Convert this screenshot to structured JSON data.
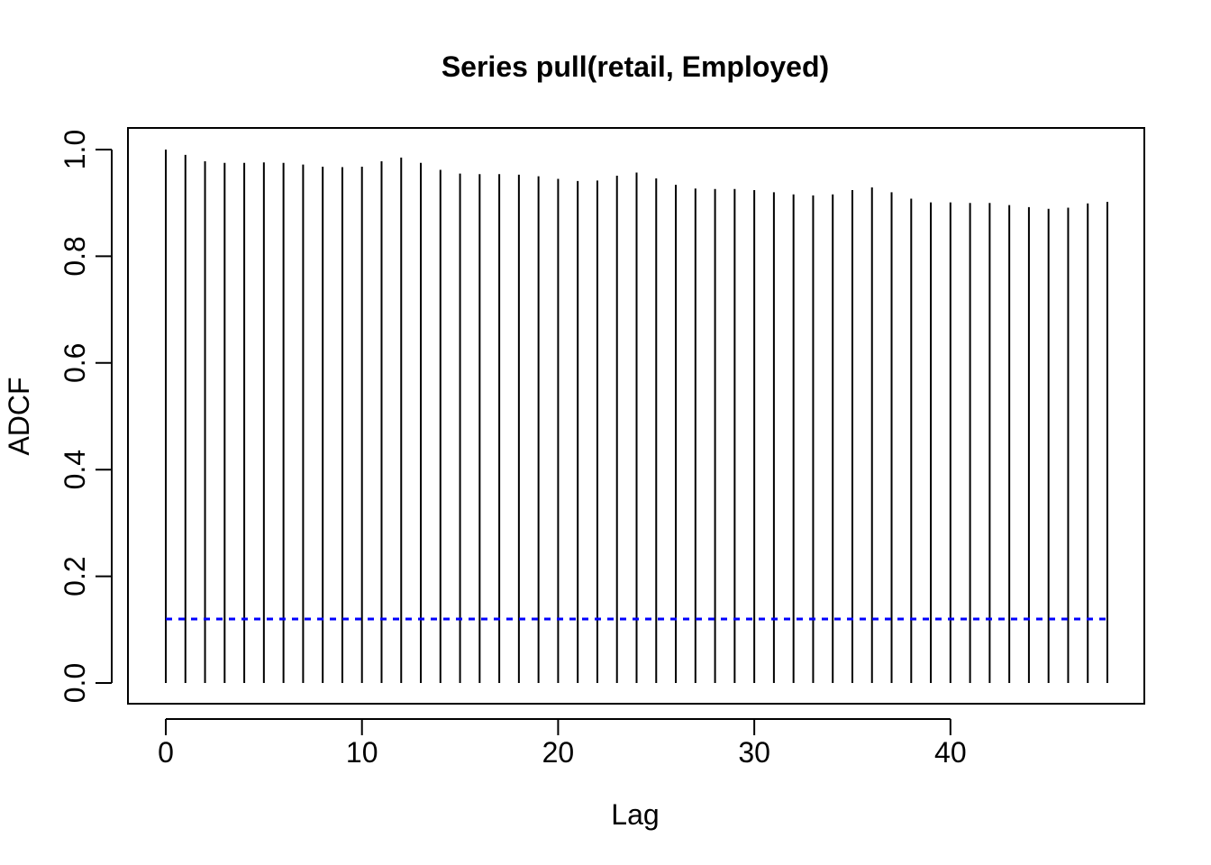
{
  "chart_data": {
    "type": "bar",
    "title": "Series pull(retail, Employed)",
    "xlabel": "Lag",
    "ylabel": "ADCF",
    "xlim": [
      0,
      48
    ],
    "ylim": [
      0,
      1.0
    ],
    "x_ticks": [
      "0",
      "10",
      "20",
      "30",
      "40"
    ],
    "y_ticks": [
      "0.0",
      "0.2",
      "0.4",
      "0.6",
      "0.8",
      "1.0"
    ],
    "x": [
      0,
      1,
      2,
      3,
      4,
      5,
      6,
      7,
      8,
      9,
      10,
      11,
      12,
      13,
      14,
      15,
      16,
      17,
      18,
      19,
      20,
      21,
      22,
      23,
      24,
      25,
      26,
      27,
      28,
      29,
      30,
      31,
      32,
      33,
      34,
      35,
      36,
      37,
      38,
      39,
      40,
      41,
      42,
      43,
      44,
      45,
      46,
      47,
      48
    ],
    "values": [
      1.0,
      0.99,
      0.978,
      0.975,
      0.975,
      0.976,
      0.975,
      0.972,
      0.968,
      0.967,
      0.968,
      0.978,
      0.985,
      0.975,
      0.962,
      0.955,
      0.954,
      0.954,
      0.953,
      0.95,
      0.945,
      0.941,
      0.942,
      0.951,
      0.957,
      0.946,
      0.934,
      0.927,
      0.926,
      0.926,
      0.924,
      0.92,
      0.916,
      0.914,
      0.916,
      0.924,
      0.929,
      0.92,
      0.908,
      0.901,
      0.901,
      0.9,
      0.9,
      0.896,
      0.892,
      0.889,
      0.891,
      0.899,
      0.902
    ],
    "ci_line": {
      "value": 0.12,
      "color": "#0000ff",
      "style": "dashed"
    },
    "bar_color": "#000000",
    "grid": false,
    "legend": "none"
  }
}
